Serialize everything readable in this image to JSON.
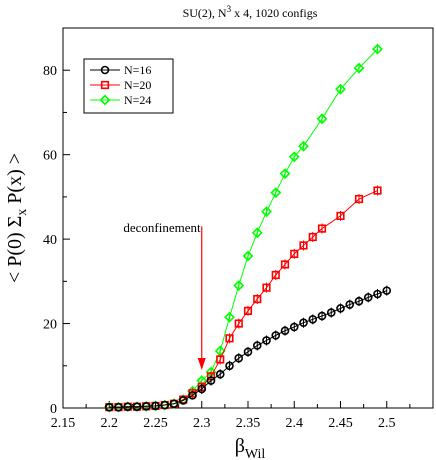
{
  "chart_data": {
    "type": "line",
    "title": {
      "prefix": "SU(2), N",
      "sup": "3",
      "suffix": " x 4, 1020 configs"
    },
    "xlabel": {
      "main": "β",
      "sub": "Wil"
    },
    "ylabel": "< P(0) Σ_x P(x) >",
    "ylabel_parts": {
      "p1": "< P(0) Σ",
      "sub": "x",
      "p2": " P(x) >"
    },
    "xlim": [
      2.15,
      2.55
    ],
    "ylim": [
      0,
      90
    ],
    "xticks": [
      2.15,
      2.2,
      2.25,
      2.3,
      2.35,
      2.4,
      2.45,
      2.5
    ],
    "xtick_labels": [
      "2.15",
      "2.2",
      "2.25",
      "2.3",
      "2.35",
      "2.4",
      "2.45",
      "2.5"
    ],
    "yticks": [
      0,
      20,
      40,
      60,
      80
    ],
    "ytick_labels": [
      "0",
      "20",
      "40",
      "60",
      "80"
    ],
    "legend_position": "top-left",
    "annotation": {
      "text": "deconfinement",
      "arrow_x": 2.3,
      "arrow_from_y": 43,
      "arrow_to_y": 9,
      "color": "#ff0000"
    },
    "series": [
      {
        "name": "N=16",
        "color": "#000000",
        "marker": "circle",
        "x": [
          2.2,
          2.21,
          2.22,
          2.23,
          2.24,
          2.25,
          2.26,
          2.27,
          2.28,
          2.29,
          2.3,
          2.31,
          2.32,
          2.33,
          2.34,
          2.35,
          2.36,
          2.37,
          2.38,
          2.39,
          2.4,
          2.41,
          2.42,
          2.43,
          2.44,
          2.45,
          2.46,
          2.47,
          2.48,
          2.49,
          2.5
        ],
        "y": [
          0.2,
          0.2,
          0.3,
          0.3,
          0.4,
          0.5,
          0.7,
          1.0,
          1.8,
          3.0,
          4.5,
          6.5,
          8.0,
          10.0,
          11.8,
          13.3,
          14.8,
          16.0,
          17.2,
          18.3,
          19.2,
          20.2,
          21.0,
          21.8,
          22.6,
          23.6,
          24.5,
          25.3,
          26.2,
          27.0,
          27.8
        ]
      },
      {
        "name": "N=20",
        "color": "#ff0000",
        "marker": "square",
        "x": [
          2.2,
          2.21,
          2.22,
          2.23,
          2.24,
          2.25,
          2.26,
          2.27,
          2.28,
          2.29,
          2.3,
          2.31,
          2.32,
          2.33,
          2.34,
          2.35,
          2.36,
          2.37,
          2.38,
          2.39,
          2.4,
          2.41,
          2.42,
          2.43,
          2.45,
          2.47,
          2.49
        ],
        "y": [
          0.2,
          0.2,
          0.3,
          0.3,
          0.4,
          0.5,
          0.7,
          1.0,
          2.0,
          3.5,
          5.0,
          7.5,
          11.5,
          16.5,
          20.0,
          23.0,
          25.8,
          28.5,
          31.5,
          34.0,
          36.5,
          38.5,
          40.5,
          42.5,
          45.5,
          49.5,
          51.5
        ]
      },
      {
        "name": "N=24",
        "color": "#00ff00",
        "marker": "diamond",
        "x": [
          2.2,
          2.21,
          2.22,
          2.23,
          2.24,
          2.25,
          2.26,
          2.27,
          2.28,
          2.29,
          2.3,
          2.31,
          2.32,
          2.33,
          2.34,
          2.35,
          2.36,
          2.37,
          2.38,
          2.39,
          2.4,
          2.41,
          2.43,
          2.45,
          2.47,
          2.49
        ],
        "y": [
          0.2,
          0.2,
          0.3,
          0.3,
          0.4,
          0.5,
          0.7,
          1.0,
          2.0,
          4.0,
          6.5,
          8.5,
          13.5,
          21.5,
          29.0,
          36.0,
          41.5,
          46.5,
          51.0,
          55.5,
          59.5,
          62.0,
          68.5,
          75.5,
          80.5,
          85.0
        ]
      }
    ]
  }
}
